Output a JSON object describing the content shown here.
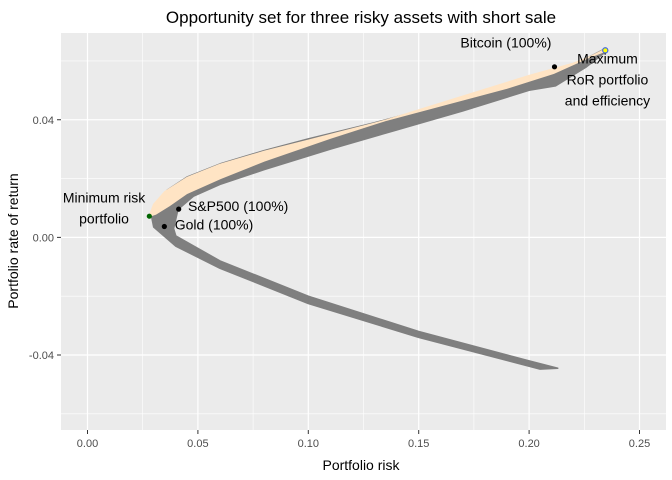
{
  "chart_data": {
    "type": "scatter",
    "title": "Opportunity set for three risky assets with short sale",
    "xlabel": "Portfolio risk",
    "ylabel": "Portfolio rate of return",
    "xlim": [
      -0.012,
      0.262
    ],
    "ylim": [
      -0.0655,
      0.0695
    ],
    "x_ticks": [
      0.0,
      0.05,
      0.1,
      0.15,
      0.2,
      0.25
    ],
    "x_tick_labels": [
      "0.00",
      "0.05",
      "0.10",
      "0.15",
      "0.20",
      "0.25"
    ],
    "y_ticks": [
      -0.04,
      0.0,
      0.04
    ],
    "y_tick_labels": [
      "-0.04",
      "0.00",
      "0.04"
    ],
    "grid": true,
    "background": "#ebebeb",
    "colors": {
      "opportunity_set": "#7f7f7f",
      "efficient_frontier": "#ffe4c4",
      "asset_point": "#000000",
      "min_risk_point": "#006400",
      "max_ror_point": "#ffff00",
      "max_ror_edge": "#4169e1"
    },
    "series": [
      {
        "style": "band",
        "color": "#7f7f7f",
        "upper": [
          [
            0.029,
            0.0072
          ],
          [
            0.031,
            0.0115
          ],
          [
            0.036,
            0.016
          ],
          [
            0.045,
            0.0205
          ],
          [
            0.06,
            0.025
          ],
          [
            0.08,
            0.0295
          ],
          [
            0.1,
            0.0335
          ],
          [
            0.13,
            0.039
          ],
          [
            0.16,
            0.045
          ],
          [
            0.19,
            0.051
          ],
          [
            0.211,
            0.0555
          ],
          [
            0.225,
            0.0605
          ],
          [
            0.234,
            0.064
          ]
        ],
        "lower": [
          [
            0.234,
            0.0627
          ],
          [
            0.226,
            0.058
          ],
          [
            0.212,
            0.0515
          ],
          [
            0.2,
            0.05
          ],
          [
            0.17,
            0.043
          ],
          [
            0.14,
            0.0365
          ],
          [
            0.11,
            0.03
          ],
          [
            0.08,
            0.023
          ],
          [
            0.06,
            0.018
          ],
          [
            0.048,
            0.014
          ],
          [
            0.041,
            0.0095
          ],
          [
            0.039,
            0.003
          ],
          [
            0.04,
            0.0005
          ],
          [
            0.06,
            -0.008
          ],
          [
            0.1,
            -0.02
          ],
          [
            0.15,
            -0.032
          ],
          [
            0.2,
            -0.042
          ],
          [
            0.213,
            -0.0445
          ],
          [
            0.205,
            -0.0448
          ],
          [
            0.15,
            -0.034
          ],
          [
            0.1,
            -0.0225
          ],
          [
            0.06,
            -0.0105
          ],
          [
            0.04,
            -0.003
          ],
          [
            0.03,
            0.0035
          ],
          [
            0.029,
            0.0072
          ]
        ]
      },
      {
        "style": "band",
        "color": "#ffe4c4",
        "upper": [
          [
            0.028,
            0.0072
          ],
          [
            0.03,
            0.0112
          ],
          [
            0.035,
            0.0155
          ],
          [
            0.045,
            0.0203
          ],
          [
            0.06,
            0.0248
          ],
          [
            0.08,
            0.0292
          ],
          [
            0.1,
            0.033
          ],
          [
            0.13,
            0.0388
          ],
          [
            0.16,
            0.0448
          ],
          [
            0.19,
            0.0508
          ],
          [
            0.211,
            0.0558
          ],
          [
            0.225,
            0.0605
          ],
          [
            0.234,
            0.0638
          ]
        ],
        "lower": [
          [
            0.234,
            0.0632
          ],
          [
            0.22,
            0.0592
          ],
          [
            0.2,
            0.055
          ],
          [
            0.17,
            0.048
          ],
          [
            0.14,
            0.041
          ],
          [
            0.11,
            0.0338
          ],
          [
            0.08,
            0.026
          ],
          [
            0.06,
            0.02
          ],
          [
            0.045,
            0.015
          ],
          [
            0.037,
            0.0108
          ],
          [
            0.031,
            0.008
          ],
          [
            0.028,
            0.0072
          ]
        ]
      }
    ],
    "points": [
      {
        "x": 0.0413,
        "y": 0.0096,
        "color": "#000000"
      },
      {
        "x": 0.0348,
        "y": 0.0037,
        "color": "#000000"
      },
      {
        "x": 0.2115,
        "y": 0.058,
        "color": "#000000"
      },
      {
        "x": 0.028,
        "y": 0.0072,
        "color": "#006400"
      },
      {
        "x": 0.2345,
        "y": 0.0636,
        "color": "#ffff00"
      }
    ],
    "annotations": [
      {
        "lines": [
          "Bitcoin (100%)"
        ],
        "x": 0.1895,
        "y": 0.0645,
        "anchor": "middle"
      },
      {
        "lines": [
          "Maximum",
          "RoR portfolio",
          "and efficiency"
        ],
        "x": 0.2355,
        "y": 0.0592,
        "anchor": "middle"
      },
      {
        "lines": [
          "S&P500 (100%)"
        ],
        "x": 0.0455,
        "y": 0.009,
        "anchor": "start"
      },
      {
        "lines": [
          "Gold (100%)"
        ],
        "x": 0.0395,
        "y": 0.0026,
        "anchor": "start"
      },
      {
        "lines": [
          "Minimum risk",
          "portfolio"
        ],
        "x": 0.0075,
        "y": 0.0118,
        "anchor": "middle"
      }
    ]
  }
}
